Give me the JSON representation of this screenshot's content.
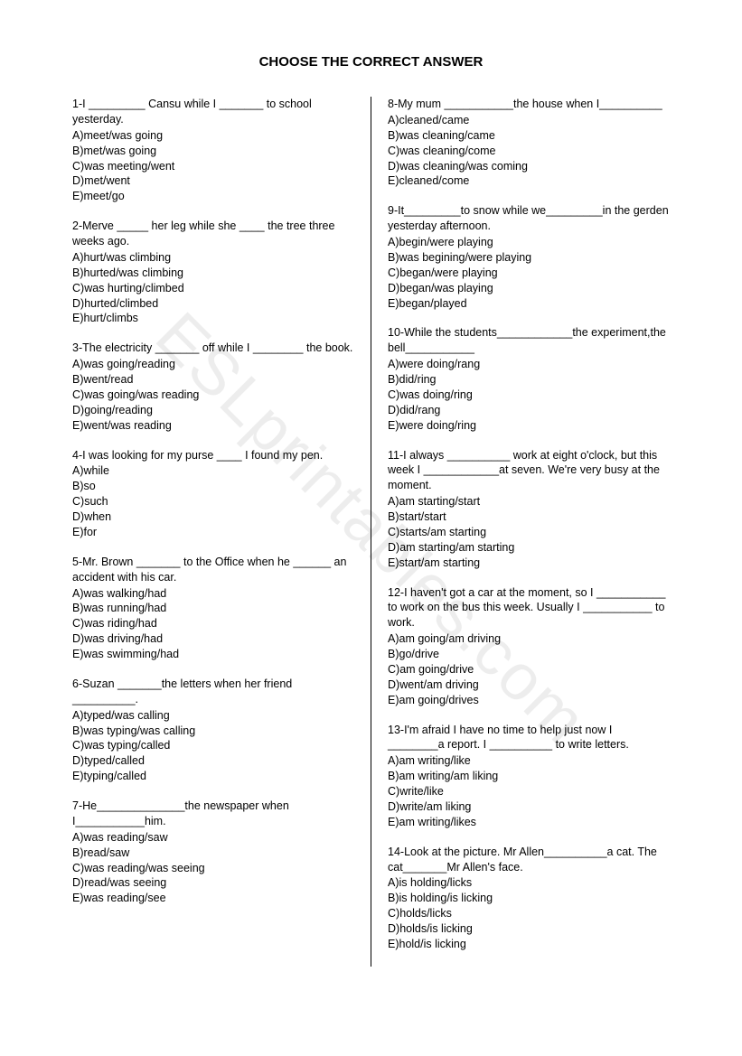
{
  "title": "CHOOSE THE CORRECT ANSWER",
  "watermark": "ESLprintables.com",
  "leftQuestions": [
    {
      "stem": "1-I _________ Cansu while I _______ to school yesterday.",
      "options": [
        "A)meet/was going",
        "B)met/was going",
        "C)was meeting/went",
        "D)met/went",
        "E)meet/go"
      ]
    },
    {
      "stem": "2-Merve _____ her leg while she ____ the tree three weeks ago.",
      "options": [
        "A)hurt/was climbing",
        "B)hurted/was climbing",
        "C)was hurting/climbed",
        "D)hurted/climbed",
        "E)hurt/climbs"
      ]
    },
    {
      "stem": "3-The electricity _______ off while I ________ the book.",
      "options": [
        "A)was going/reading",
        "B)went/read",
        "C)was going/was reading",
        "D)going/reading",
        "E)went/was reading"
      ]
    },
    {
      "stem": "4-I was looking for my purse ____ I found my pen.",
      "options": [
        "A)while",
        "B)so",
        "C)such",
        "D)when",
        "E)for"
      ]
    },
    {
      "stem": "5-Mr. Brown _______ to the Office when he ______ an accident with his car.",
      "options": [
        "A)was walking/had",
        "B)was running/had",
        "C)was riding/had",
        "D)was driving/had",
        "E)was swimming/had"
      ]
    },
    {
      "stem": "6-Suzan _______the letters when her friend __________.",
      "options": [
        "A)typed/was calling",
        "B)was typing/was calling",
        "C)was typing/called",
        "D)typed/called",
        "E)typing/called"
      ]
    },
    {
      "stem": "7-He______________the newspaper when I___________him.",
      "options": [
        "A)was reading/saw",
        "B)read/saw",
        "C)was reading/was seeing",
        "D)read/was seeing",
        "E)was reading/see"
      ]
    }
  ],
  "rightQuestions": [
    {
      "stem": "8-My mum ___________the house when I__________",
      "options": [
        "A)cleaned/came",
        "B)was cleaning/came",
        "C)was cleaning/come",
        "D)was cleaning/was coming",
        "E)cleaned/come"
      ]
    },
    {
      "stem": "9-It_________to snow while we_________in the gerden yesterday afternoon.",
      "options": [
        "A)begin/were playing",
        "B)was begining/were playing",
        "C)began/were playing",
        "D)began/was playing",
        "E)began/played"
      ]
    },
    {
      "stem": "10-While the students____________the experiment,the bell___________",
      "options": [
        "A)were doing/rang",
        "B)did/ring",
        "C)was doing/ring",
        "D)did/rang",
        "E)were doing/ring"
      ]
    },
    {
      "stem": "11-I always __________ work at eight o'clock, but this week I ____________at seven. We're very busy at the moment.",
      "options": [
        "A)am starting/start",
        "B)start/start",
        "C)starts/am starting",
        "D)am starting/am starting",
        "E)start/am starting"
      ]
    },
    {
      "stem": "12-I haven't got a car at the moment, so I ___________ to work on the bus this week. Usually I ___________ to work.",
      "options": [
        "A)am going/am driving",
        "B)go/drive",
        "C)am going/drive",
        "D)went/am driving",
        "E)am going/drives"
      ]
    },
    {
      "stem": "13-I'm afraid I have no time to help just now I ________a report. I __________ to write letters.",
      "options": [
        "A)am writing/like",
        "B)am writing/am liking",
        "C)write/like",
        "D)write/am liking",
        "E)am writing/likes"
      ]
    },
    {
      "stem": "14-Look at the picture. Mr Allen__________a cat. The cat_______Mr Allen's face.",
      "options": [
        "A)is holding/licks",
        "B)is holding/is licking",
        "C)holds/licks",
        "D)holds/is licking",
        "E)hold/is licking"
      ]
    }
  ]
}
